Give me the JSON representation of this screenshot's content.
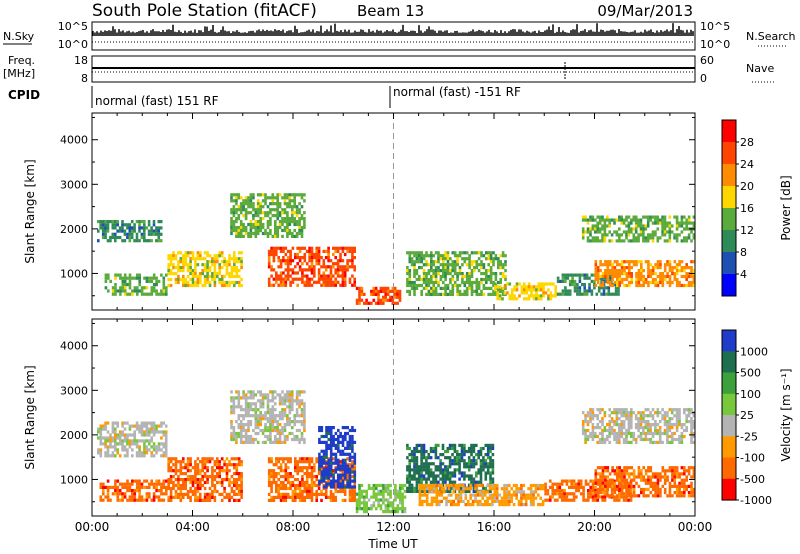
{
  "header": {
    "station": "South Pole Station (fitACF)",
    "beam": "Beam 13",
    "date": "09/Mar/2013"
  },
  "aux_panels": {
    "nsky_label": "N.Sky",
    "nsearch_label": "N.Search",
    "noise_ticks_left": [
      "10^5",
      "10^0"
    ],
    "noise_ticks_right": [
      "10^5",
      "10^0"
    ],
    "freq_label_1": "Freq.",
    "freq_label_2": "[MHz]",
    "freq_ticks": [
      "18",
      "8"
    ],
    "nave_label": "Nave",
    "nave_ticks": [
      "60",
      "0"
    ],
    "cpid_label": "CPID",
    "cpid_segments": [
      "normal (fast) 151 RF",
      "normal (fast) -151 RF"
    ]
  },
  "colors": {
    "power": [
      "#0000ff",
      "#1e50b4",
      "#2e8b57",
      "#5aaa3c",
      "#ffd700",
      "#ff8c00",
      "#ff4500",
      "#ff0000"
    ],
    "velocity": [
      "#1e3cc8",
      "#1e6e50",
      "#3ca03c",
      "#78c83c",
      "#b4b4b4",
      "#ff9b00",
      "#ff6a00",
      "#ff0000"
    ]
  },
  "chart_data": [
    {
      "type": "heatmap",
      "panel": "power",
      "ylabel": "Slant Range [km]",
      "ylim": [
        180,
        4600
      ],
      "yticks": [
        "1000",
        "2000",
        "3000",
        "4000"
      ],
      "xlim": [
        0,
        24
      ],
      "xticks": [
        "00:00",
        "04:00",
        "08:00",
        "12:00",
        "16:00",
        "20:00",
        "00:00"
      ],
      "colorbar_label": "Power [dB]",
      "colorbar_ticks": [
        "4",
        "8",
        "12",
        "16",
        "20",
        "24",
        "28"
      ],
      "bands": [
        {
          "t0": 0.2,
          "t1": 2.8,
          "r0": 1700,
          "r1": 2200,
          "level": 2
        },
        {
          "t0": 0.5,
          "t1": 3.0,
          "r0": 500,
          "r1": 1000,
          "level": 3
        },
        {
          "t0": 3.0,
          "t1": 6.0,
          "r0": 700,
          "r1": 1500,
          "level": 4
        },
        {
          "t0": 5.5,
          "t1": 8.5,
          "r0": 1800,
          "r1": 2800,
          "level": 3
        },
        {
          "t0": 7.0,
          "t1": 10.5,
          "r0": 700,
          "r1": 1600,
          "level": 6
        },
        {
          "t0": 10.5,
          "t1": 12.3,
          "r0": 300,
          "r1": 700,
          "level": 6
        },
        {
          "t0": 12.5,
          "t1": 16.5,
          "r0": 500,
          "r1": 1500,
          "level": 3
        },
        {
          "t0": 16.0,
          "t1": 18.5,
          "r0": 400,
          "r1": 800,
          "level": 4
        },
        {
          "t0": 18.5,
          "t1": 21.0,
          "r0": 500,
          "r1": 1000,
          "level": 2
        },
        {
          "t0": 19.5,
          "t1": 24.0,
          "r0": 1700,
          "r1": 2300,
          "level": 3
        },
        {
          "t0": 20.0,
          "t1": 24.0,
          "r0": 700,
          "r1": 1300,
          "level": 5
        }
      ]
    },
    {
      "type": "heatmap",
      "panel": "velocity",
      "ylabel": "Slant Range [km]",
      "ylim": [
        180,
        4600
      ],
      "yticks": [
        "1000",
        "2000",
        "3000",
        "4000"
      ],
      "xlim": [
        0,
        24
      ],
      "xticks": [
        "00:00",
        "04:00",
        "08:00",
        "12:00",
        "16:00",
        "20:00",
        "00:00"
      ],
      "xlabel": "Time UT",
      "colorbar_label": "Velocity [m s⁻¹]",
      "colorbar_ticks": [
        "1000",
        "500",
        "100",
        "25",
        "-25",
        "-100",
        "-500",
        "-1000"
      ],
      "bands": [
        {
          "t0": 0.2,
          "t1": 3.0,
          "r0": 1500,
          "r1": 2300,
          "level": 4
        },
        {
          "t0": 0.3,
          "t1": 3.0,
          "r0": 500,
          "r1": 1000,
          "level": 6
        },
        {
          "t0": 3.0,
          "t1": 6.0,
          "r0": 500,
          "r1": 1500,
          "level": 6
        },
        {
          "t0": 5.5,
          "t1": 8.5,
          "r0": 1800,
          "r1": 3000,
          "level": 4
        },
        {
          "t0": 7.0,
          "t1": 10.5,
          "r0": 500,
          "r1": 1500,
          "level": 6
        },
        {
          "t0": 9.0,
          "t1": 10.5,
          "r0": 800,
          "r1": 2200,
          "level": 0
        },
        {
          "t0": 10.5,
          "t1": 12.5,
          "r0": 250,
          "r1": 900,
          "level": 3
        },
        {
          "t0": 12.5,
          "t1": 16.0,
          "r0": 700,
          "r1": 1800,
          "level": 1
        },
        {
          "t0": 13.0,
          "t1": 18.0,
          "r0": 400,
          "r1": 900,
          "level": 5
        },
        {
          "t0": 18.0,
          "t1": 21.5,
          "r0": 500,
          "r1": 1000,
          "level": 6
        },
        {
          "t0": 19.5,
          "t1": 24.0,
          "r0": 1800,
          "r1": 2600,
          "level": 4
        },
        {
          "t0": 20.0,
          "t1": 24.0,
          "r0": 600,
          "r1": 1300,
          "level": 6
        }
      ]
    }
  ]
}
